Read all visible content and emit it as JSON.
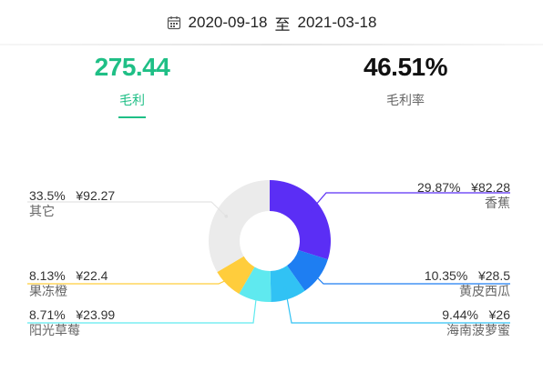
{
  "date_range": {
    "start": "2020-09-18",
    "separator": "至",
    "end": "2021-03-18"
  },
  "tabs": [
    {
      "value": "275.44",
      "label": "毛利",
      "active": true
    },
    {
      "value": "46.51%",
      "label": "毛利率",
      "active": false
    }
  ],
  "colors": {
    "accent": "#1fbf86"
  },
  "chart_data": {
    "type": "pie",
    "donut": true,
    "slices": [
      {
        "name": "香蕉",
        "percent": "29.87%",
        "amount": "¥82.28",
        "value": 82.28,
        "color": "#5b2ef5"
      },
      {
        "name": "黄皮西瓜",
        "percent": "10.35%",
        "amount": "¥28.5",
        "value": 28.5,
        "color": "#1e7ef2"
      },
      {
        "name": "海南菠萝蜜",
        "percent": "9.44%",
        "amount": "¥26",
        "value": 26,
        "color": "#31c2f4"
      },
      {
        "name": "阳光草莓",
        "percent": "8.71%",
        "amount": "¥23.99",
        "value": 23.99,
        "color": "#5fe9ef"
      },
      {
        "name": "果冻橙",
        "percent": "8.13%",
        "amount": "¥22.4",
        "value": 22.4,
        "color": "#ffcd3c"
      },
      {
        "name": "其它",
        "percent": "33.5%",
        "amount": "¥92.27",
        "value": 92.27,
        "color": "#ebebeb"
      }
    ]
  }
}
